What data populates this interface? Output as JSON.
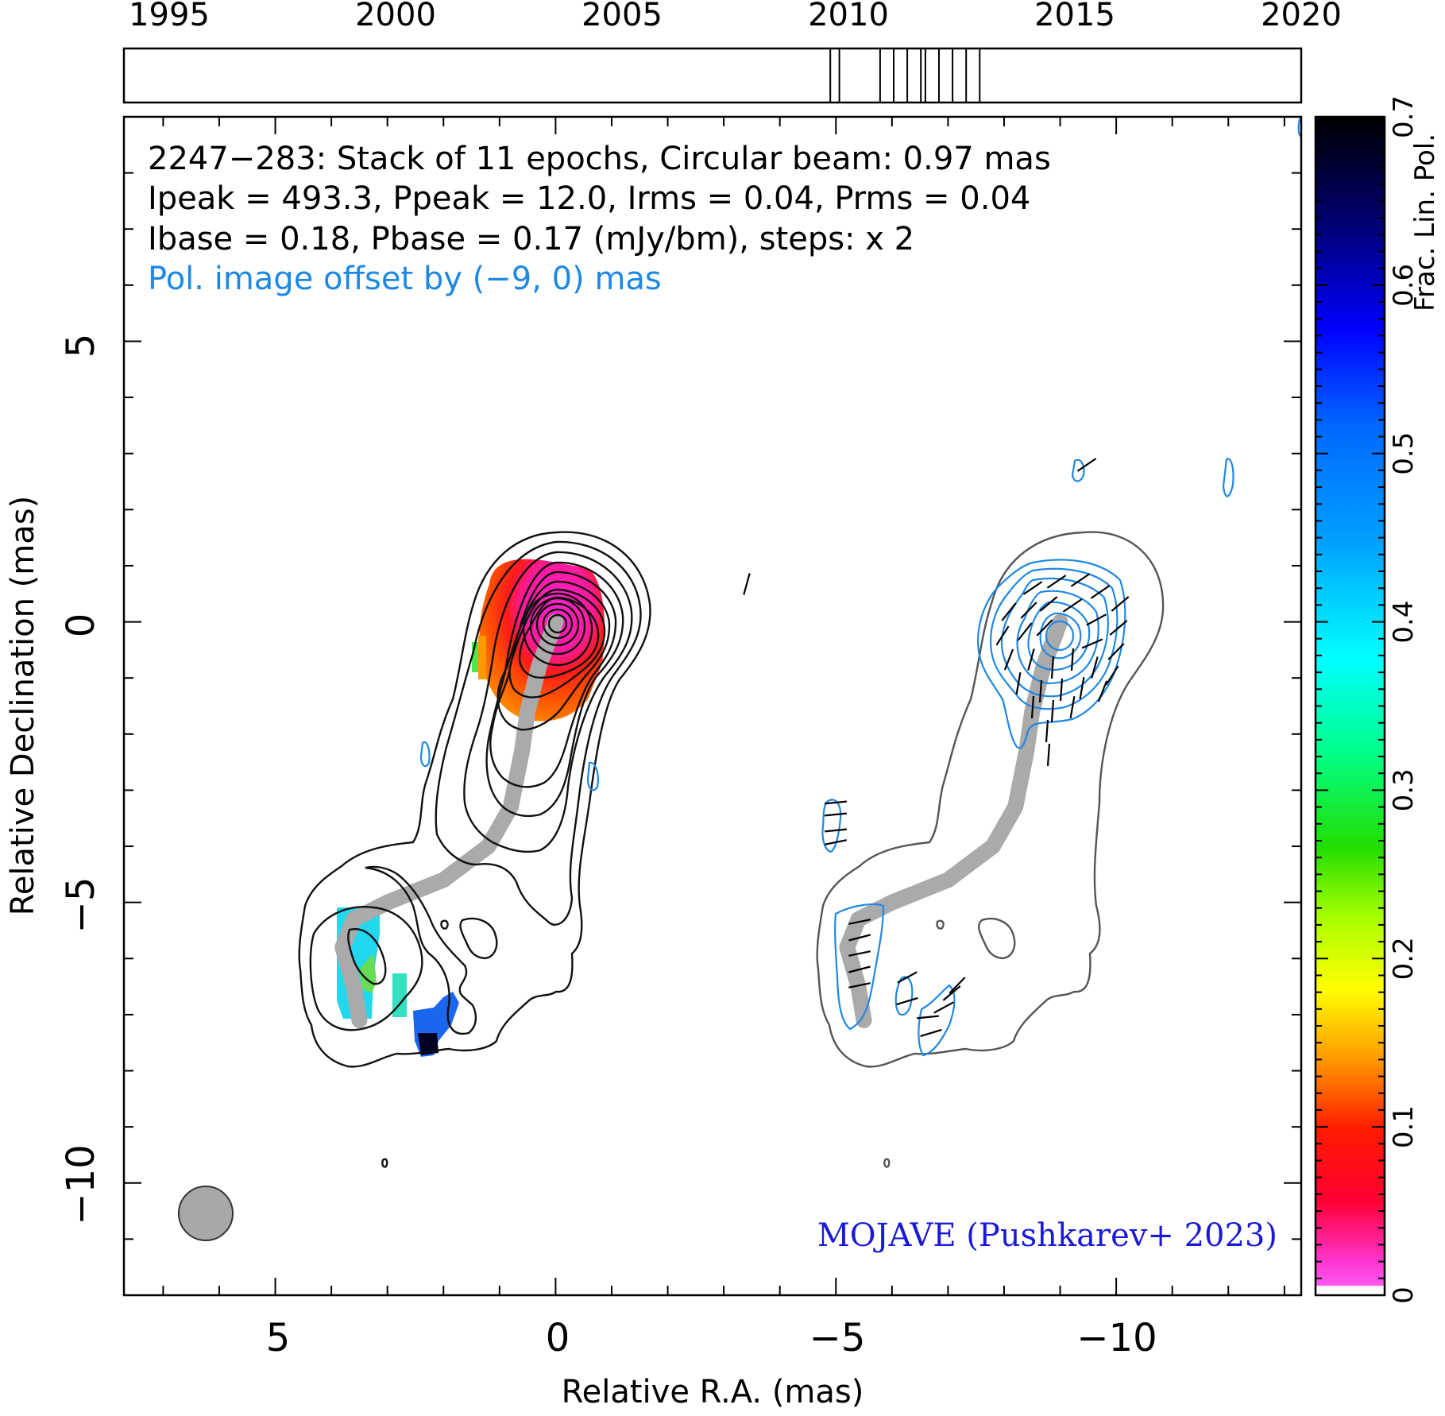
{
  "chart_data": {
    "type": "contour",
    "source": "2247−283",
    "annotation_lines": [
      "2247−283: Stack of 11 epochs, Circular beam: 0.97 mas",
      "Ipeak = 493.3, Ppeak = 12.0, Irms = 0.04, Prms = 0.04",
      "Ibase = 0.18, Pbase = 0.17 (mJy/bm), steps: x 2"
    ],
    "offset_note": "Pol. image offset by (−9, 0) mas",
    "credit": "MOJAVE (Pushkarev+ 2023)",
    "xlabel": "Relative R.A. (mas)",
    "ylabel": "Relative Declination (mas)",
    "colorbar_label": "Frac. Lin. Pol.",
    "xlim": [
      7.7,
      -13.3
    ],
    "ylim": [
      -12,
      9
    ],
    "xticks": [
      5,
      0,
      -5,
      -10
    ],
    "xtick_labels": [
      "5",
      "0",
      "−5",
      "−10"
    ],
    "yticks": [
      5,
      0,
      -5,
      -10
    ],
    "ytick_labels": [
      "5",
      "0",
      "−5",
      "−10"
    ],
    "colorbar_range": [
      0,
      0.7
    ],
    "colorbar_ticks": [
      0,
      0.1,
      0.2,
      0.3,
      0.4,
      0.5,
      0.6,
      0.7
    ],
    "colorbar_tick_labels": [
      "0",
      "0.1",
      "0.2",
      "0.3",
      "0.4",
      "0.5",
      "0.6",
      "0.7"
    ],
    "timeline": {
      "range": [
        1994,
        2020
      ],
      "ticks": [
        1995,
        2000,
        2005,
        2010,
        2015,
        2020
      ],
      "tick_labels": [
        "1995",
        "2000",
        "2005",
        "2010",
        "2015",
        "2020"
      ],
      "epochs": [
        2009.6,
        2009.8,
        2010.7,
        2011.0,
        2011.3,
        2011.6,
        2011.7,
        2012.0,
        2012.3,
        2012.6,
        2012.9
      ]
    },
    "beam_diameter_mas": 0.97,
    "ridgeline": [
      [
        0,
        0
      ],
      [
        0.3,
        -0.8
      ],
      [
        0.5,
        -1.6
      ],
      [
        0.6,
        -2.3
      ],
      [
        0.8,
        -3.3
      ],
      [
        1.2,
        -4.0
      ],
      [
        2.0,
        -4.6
      ],
      [
        3.0,
        -5.0
      ],
      [
        3.6,
        -5.3
      ],
      [
        3.8,
        -5.8
      ],
      [
        3.6,
        -6.5
      ],
      [
        3.5,
        -7.1
      ]
    ],
    "pol_offset_mas": [
      -9,
      0
    ]
  },
  "colors": {
    "intensity_contour": "#111111",
    "outer_contour_pol_panel": "#555555",
    "pol_contour": "#1e88e5",
    "ridgeline": "#aaaaaa",
    "offset_note": "#1e88e5",
    "credit": "#1a1ad6",
    "beam": "#a8a8a8"
  }
}
